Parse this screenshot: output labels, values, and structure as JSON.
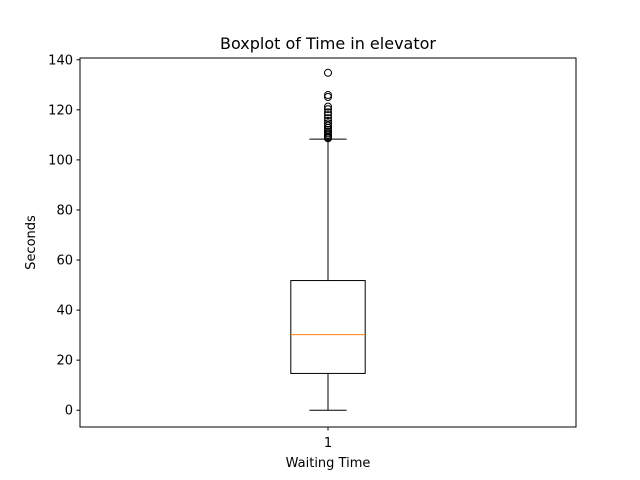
{
  "chart_data": {
    "type": "boxplot",
    "title": "Boxplot of Time in elevator",
    "xlabel": "Waiting Time",
    "ylabel": "Seconds",
    "ylim": [
      -6.7,
      140.7
    ],
    "xlim": [
      0.5,
      1.5
    ],
    "yticks": [
      0,
      20,
      40,
      60,
      80,
      100,
      120,
      140
    ],
    "xticks": [
      1
    ],
    "xtick_labels": [
      "1"
    ],
    "series": [
      {
        "position": 1,
        "whisker_low": 0,
        "q1": 14.7,
        "median": 30.2,
        "q3": 51.8,
        "whisker_high": 108.3,
        "outliers": [
          108.6,
          109.0,
          109.4,
          110.0,
          110.6,
          111.3,
          112.0,
          112.8,
          113.7,
          114.6,
          115.6,
          116.7,
          117.9,
          119.0,
          120.3,
          121.3,
          125.1,
          125.9,
          134.8
        ]
      }
    ],
    "colors": {
      "box": "#000000",
      "median": "#ff7f0e",
      "outlier": "#000000"
    },
    "grid": false,
    "legend": "none"
  }
}
